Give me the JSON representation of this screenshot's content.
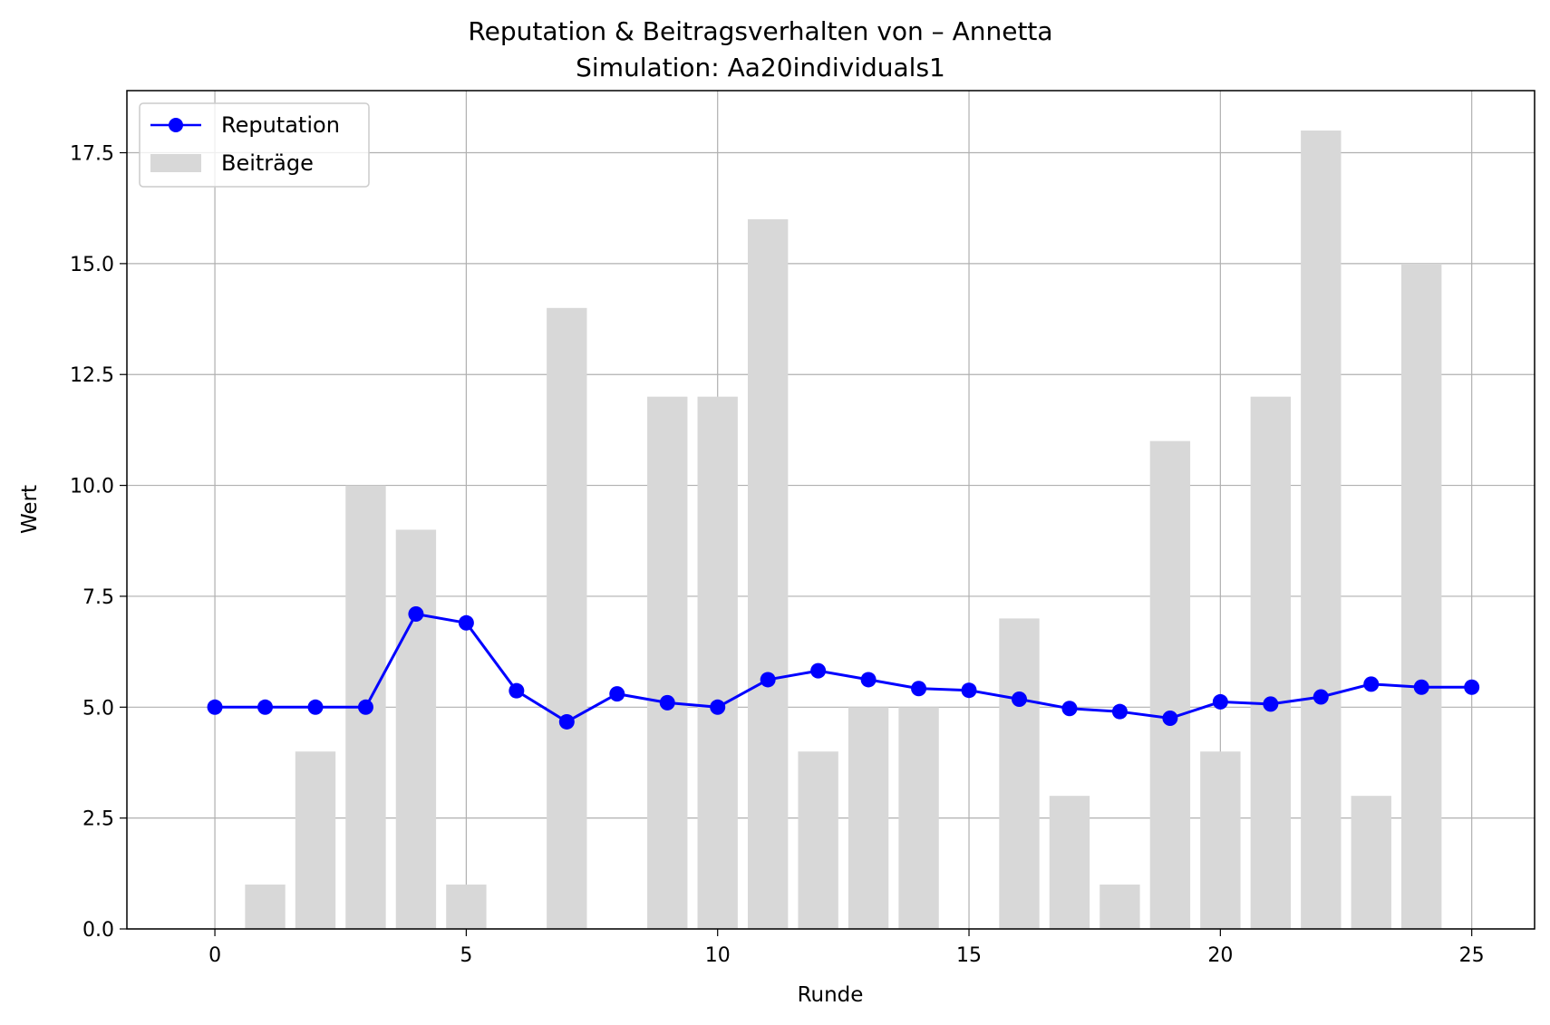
{
  "chart_data": {
    "type": "bar+line",
    "title": "Reputation & Beitragsverhalten von – Annetta",
    "subtitle": "Simulation: Aa20individuals1",
    "xlabel": "Runde",
    "ylabel": "Wert",
    "xlim": [
      -1.75,
      26.25
    ],
    "ylim": [
      0,
      18.9
    ],
    "x_ticks": [
      0,
      5,
      10,
      15,
      20,
      25
    ],
    "y_ticks": [
      0,
      2.5,
      5,
      7.5,
      10,
      12.5,
      15,
      17.5
    ],
    "x_tick_labels": [
      "0",
      "5",
      "10",
      "15",
      "20",
      "25"
    ],
    "y_tick_labels": [
      "0.0",
      "2.5",
      "5.0",
      "7.5",
      "10.0",
      "12.5",
      "15.0",
      "17.5"
    ],
    "grid": true,
    "legend_position": "top-left",
    "series": [
      {
        "name": "Reputation",
        "kind": "line",
        "marker": "circle",
        "color": "#0000ff",
        "x": [
          0,
          1,
          2,
          3,
          4,
          5,
          6,
          7,
          8,
          9,
          10,
          11,
          12,
          13,
          14,
          15,
          16,
          17,
          18,
          19,
          20,
          21,
          22,
          23,
          24,
          25
        ],
        "values": [
          5.0,
          5.0,
          5.0,
          5.0,
          7.1,
          6.9,
          5.37,
          4.67,
          5.3,
          5.1,
          5.0,
          5.62,
          5.82,
          5.62,
          5.42,
          5.38,
          5.18,
          4.97,
          4.9,
          4.75,
          5.12,
          5.07,
          5.23,
          5.52,
          5.45,
          5.45
        ]
      },
      {
        "name": "Beiträge",
        "kind": "bar",
        "color": "#d8d8d8",
        "x": [
          1,
          2,
          3,
          4,
          5,
          7,
          9,
          10,
          11,
          12,
          13,
          14,
          16,
          17,
          18,
          19,
          20,
          21,
          22,
          23,
          24
        ],
        "values": [
          1,
          4,
          10,
          9,
          1,
          14,
          12,
          12,
          16,
          4,
          5,
          5,
          7,
          3,
          1,
          11,
          4,
          12,
          18,
          3,
          15
        ]
      }
    ]
  }
}
